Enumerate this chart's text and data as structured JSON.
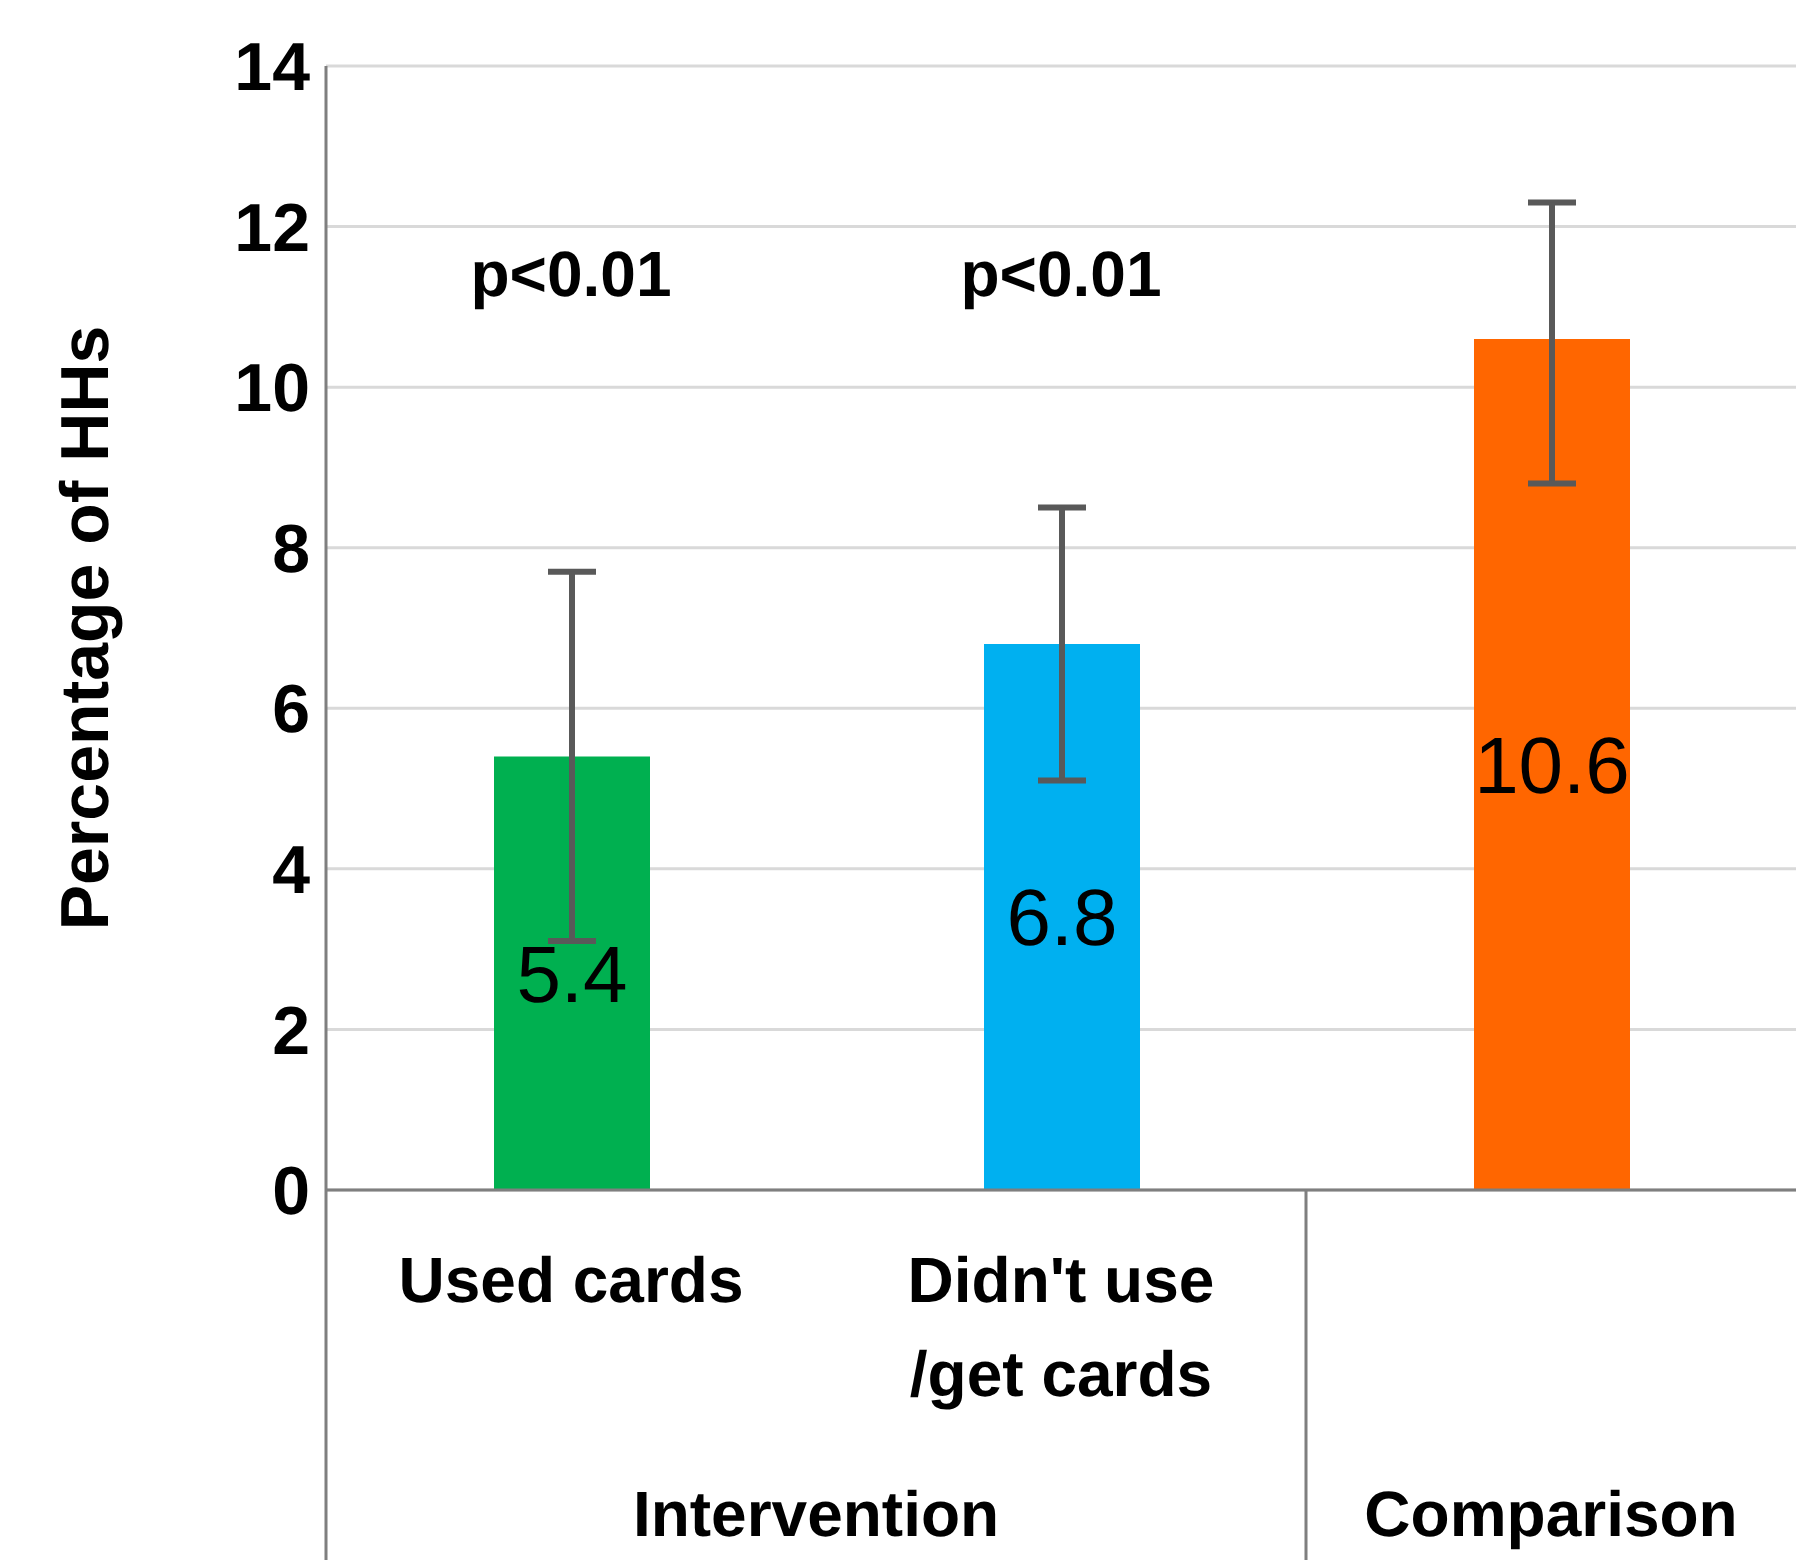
{
  "chart_data": {
    "type": "bar",
    "ylabel": "Percentage of HHs",
    "categories": [
      "Used cards",
      "Didn't use /get cards",
      null
    ],
    "values": [
      5.4,
      6.8,
      10.6
    ],
    "colors": [
      "#00b050",
      "#00b0f0",
      "#ff6600"
    ],
    "errors": [
      [
        3.1,
        7.7
      ],
      [
        5.1,
        8.5
      ],
      [
        8.8,
        12.3
      ]
    ],
    "ylim": [
      0,
      14
    ],
    "yticks": [
      0,
      2,
      4,
      6,
      8,
      10,
      12,
      14
    ],
    "grid": "y",
    "data_labels": true,
    "annotations": [
      "p<0.01",
      "p<0.01",
      "Intervention",
      "Comparison"
    ]
  }
}
